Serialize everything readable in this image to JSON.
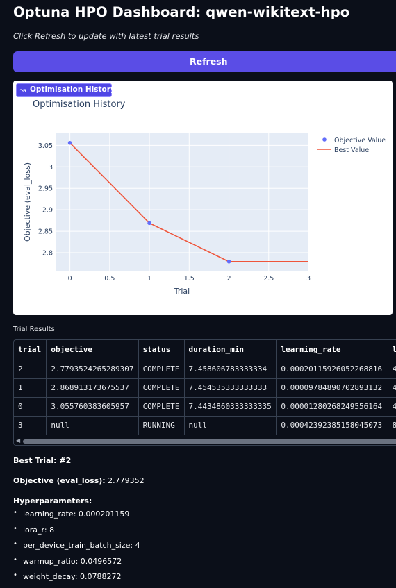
{
  "page": {
    "title": "Optuna HPO Dashboard: qwen-wikitext-hpo",
    "subtitle": "Click Refresh to update with latest trial results",
    "refresh_label": "Refresh"
  },
  "plot": {
    "badge_label": "Optimisation History",
    "badge_icon": "line-chart-icon"
  },
  "chart_data": {
    "type": "line",
    "title": "Optimisation History",
    "xlabel": "Trial",
    "ylabel": "Objective (eval_loss)",
    "xlim": [
      -0.18,
      3
    ],
    "ylim": [
      2.758,
      3.078
    ],
    "x_ticks": [
      0,
      0.5,
      1,
      1.5,
      2,
      2.5,
      3
    ],
    "x_tick_labels": [
      "0",
      "0.5",
      "1",
      "1.5",
      "2",
      "2.5",
      "3"
    ],
    "y_ticks": [
      2.8,
      2.85,
      2.9,
      2.95,
      3,
      3.05
    ],
    "y_tick_labels": [
      "2.8",
      "2.85",
      "2.9",
      "2.95",
      "3",
      "3.05"
    ],
    "grid": true,
    "legend_position": "top-right",
    "plot_bg": "#e5ecf6",
    "series": [
      {
        "name": "Objective Value",
        "kind": "markers",
        "color": "#636efa",
        "x": [
          0,
          1,
          2
        ],
        "y": [
          3.05576,
          2.86891,
          2.77935
        ]
      },
      {
        "name": "Best Value",
        "kind": "line",
        "color": "#ef553b",
        "x": [
          0,
          1,
          2,
          3
        ],
        "y": [
          3.05576,
          2.86891,
          2.77935,
          2.77935
        ]
      }
    ]
  },
  "results": {
    "label": "Trial Results",
    "columns": [
      "trial",
      "objective",
      "status",
      "duration_min",
      "learning_rate",
      "l"
    ],
    "rows": [
      [
        "2",
        "2.7793524265289307",
        "COMPLETE",
        "7.458606783333334",
        "0.00020115926052268816",
        "4"
      ],
      [
        "1",
        "2.868913173675537",
        "COMPLETE",
        "7.454535333333333",
        "0.00009784890702893132",
        "4"
      ],
      [
        "0",
        "3.055760383605957",
        "COMPLETE",
        "7.4434860333333335",
        "0.00001280268249556164",
        "4"
      ],
      [
        "3",
        "null",
        "RUNNING",
        "null",
        "0.00042392385158045073",
        "8"
      ]
    ]
  },
  "best": {
    "label": "Best Trial: #2",
    "objective_label": "Objective (eval_loss):",
    "objective_value": " 2.779352",
    "hyper_label": "Hyperparameters:",
    "hyperparameters": [
      "learning_rate: 0.000201159",
      "lora_r: 8",
      "per_device_train_batch_size: 4",
      "warmup_ratio: 0.0496572",
      "weight_decay: 0.0788272"
    ]
  },
  "colors": {
    "accent": "#5a4de6",
    "background": "#0b0f19"
  }
}
